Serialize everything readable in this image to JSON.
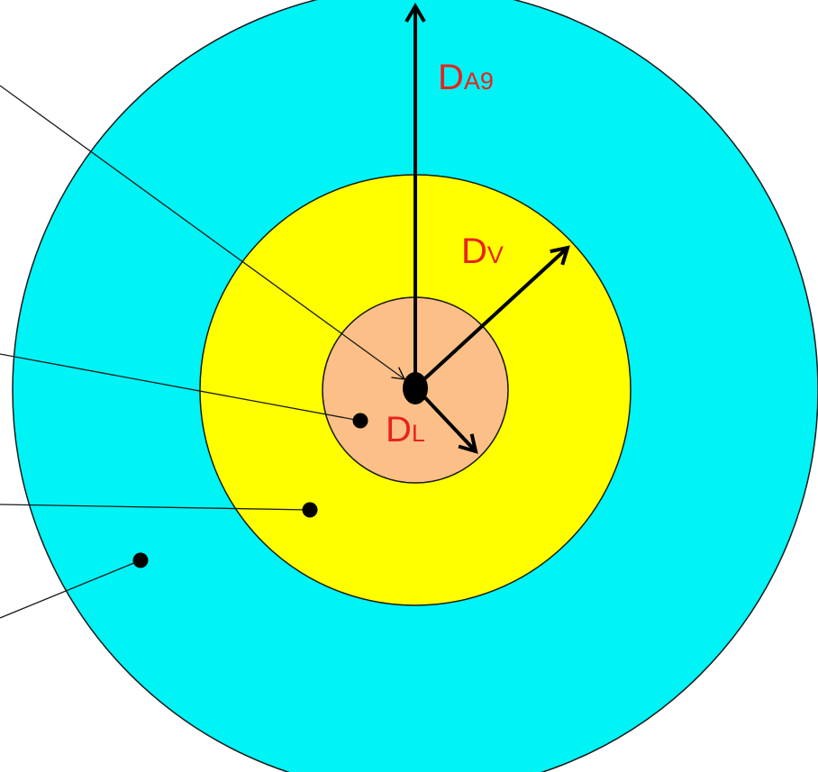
{
  "colors": {
    "outer_zone": "#00f3f5",
    "middle_zone": "#ffff00",
    "inner_zone": "#fbbf87",
    "outline": "#1a1a1a",
    "label": "#e8231e"
  },
  "labels": {
    "outer_radius": {
      "main": "D",
      "sub": "A9"
    },
    "middle_radius": {
      "main": "D",
      "sub": "V"
    },
    "inner_radius": {
      "main": "D",
      "sub": "L"
    }
  }
}
